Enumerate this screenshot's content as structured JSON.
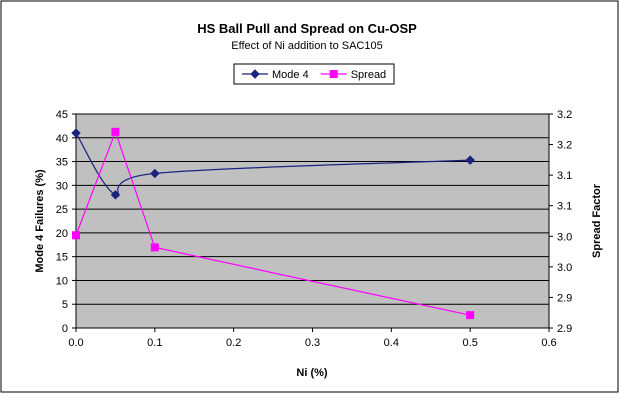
{
  "chart_data": {
    "type": "line",
    "title": "HS Ball Pull and Spread on Cu-OSP",
    "subtitle": "Effect of Ni addition to SAC105",
    "xlabel": "Ni (%)",
    "ylabel": "Mode 4 Failures (%)",
    "y2label": "Spread Factor",
    "xlim": [
      0,
      0.6
    ],
    "ylim": [
      0,
      45
    ],
    "y2lim": [
      2.9,
      3.2
    ],
    "x_ticks": [
      "0.0",
      "0.1",
      "0.2",
      "0.3",
      "0.4",
      "0.5",
      "0.6"
    ],
    "y_ticks": [
      "0",
      "5",
      "10",
      "15",
      "20",
      "25",
      "30",
      "35",
      "40",
      "45"
    ],
    "y2_ticks": [
      "2.9",
      "2.9",
      "3.0",
      "3.0",
      "3.1",
      "3.1",
      "3.2",
      "3.2"
    ],
    "grid": true,
    "legend_position": "top-center",
    "series": [
      {
        "name": "Mode 4",
        "axis": "left",
        "color": "#1a237e",
        "marker": "diamond",
        "x": [
          0.0,
          0.05,
          0.1,
          0.5
        ],
        "y": [
          41,
          28,
          32.5,
          35.3
        ]
      },
      {
        "name": "Spread",
        "axis": "right",
        "color": "#ff00ff",
        "marker": "square",
        "x": [
          0.0,
          0.05,
          0.1,
          0.5
        ],
        "y": [
          3.03,
          3.175,
          3.013,
          2.918
        ]
      }
    ],
    "colors": {
      "plot_background": "#c0c0c0",
      "gridline": "#000000"
    }
  }
}
